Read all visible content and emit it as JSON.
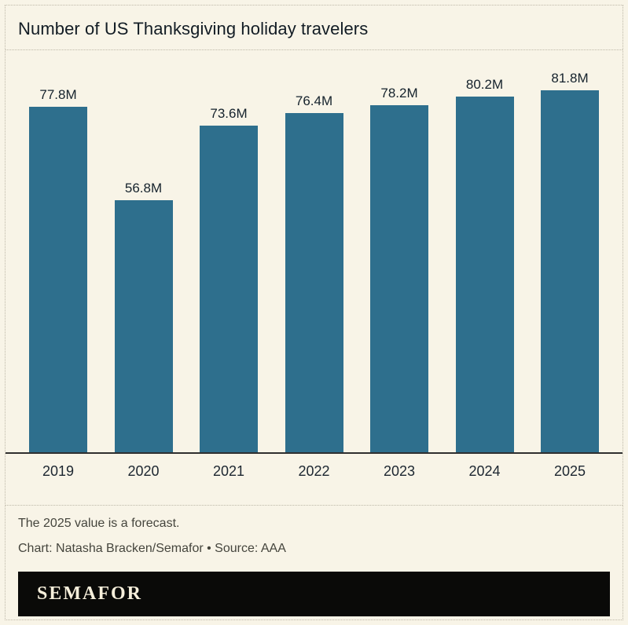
{
  "header": {
    "title": "Number of US Thanksgiving holiday travelers"
  },
  "chart_data": {
    "type": "bar",
    "categories": [
      "2019",
      "2020",
      "2021",
      "2022",
      "2023",
      "2024",
      "2025"
    ],
    "values": [
      77.8,
      56.8,
      73.6,
      76.4,
      78.2,
      80.2,
      81.8
    ],
    "value_labels": [
      "77.8M",
      "56.8M",
      "73.6M",
      "76.4M",
      "78.2M",
      "80.2M",
      "81.8M"
    ],
    "title": "Number of US Thanksgiving holiday travelers",
    "xlabel": "",
    "ylabel": "",
    "ylim": [
      0,
      86
    ],
    "grid": false,
    "legend": false,
    "bar_color": "#2e6f8d",
    "annotation": "The 2025 value is a forecast."
  },
  "notes": {
    "forecast": "The 2025 value is a forecast.",
    "credit": "Chart: Natasha Bracken/Semafor • Source: AAA"
  },
  "footer": {
    "brand": "SEMAFOR"
  },
  "colors": {
    "background": "#f8f4e7",
    "bar": "#2e6f8d",
    "text_primary": "#15222c",
    "text_secondary": "#45453d",
    "divider": "#bdb8a8",
    "axis": "#2f2f2f",
    "footer_background": "#0a0a08",
    "footer_text": "#f6efdb"
  }
}
